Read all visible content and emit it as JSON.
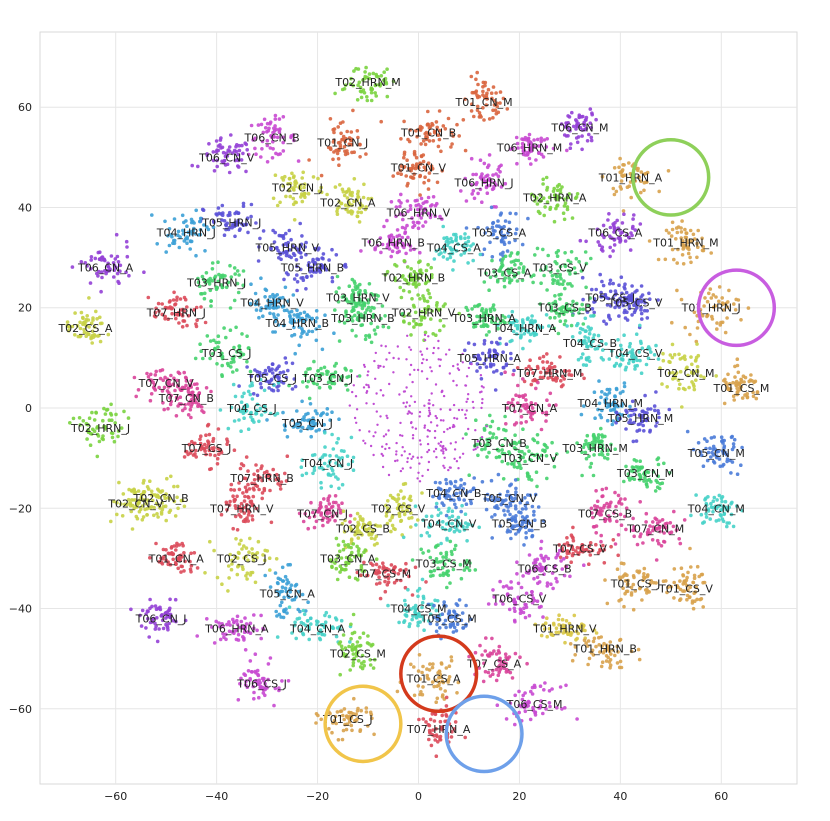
{
  "chart_data": {
    "type": "scatter",
    "title": "",
    "xlabel": "",
    "ylabel": "",
    "xlim": [
      -75,
      75
    ],
    "ylim": [
      -75,
      75
    ],
    "grid": true,
    "legend": "none",
    "x_ticks": [
      -60,
      -40,
      -20,
      0,
      20,
      40,
      60
    ],
    "y_ticks": [
      -60,
      -40,
      -20,
      0,
      20,
      40,
      60
    ],
    "clusters": [
      {
        "label": "T02_HRN_M",
        "x": -10,
        "y": 65,
        "color": "#7ad33f"
      },
      {
        "label": "T01_CN_M",
        "x": 13,
        "y": 61,
        "color": "#d9653e"
      },
      {
        "label": "T06_CN_M",
        "x": 32,
        "y": 56,
        "color": "#9440d6"
      },
      {
        "label": "T01_CN_B",
        "x": 2,
        "y": 55,
        "color": "#d9653e"
      },
      {
        "label": "T01_CN_J",
        "x": -15,
        "y": 53,
        "color": "#d9653e"
      },
      {
        "label": "T06_CN_B",
        "x": -29,
        "y": 54,
        "color": "#c849d1"
      },
      {
        "label": "T06_HRN_M",
        "x": 22,
        "y": 52,
        "color": "#c849d1"
      },
      {
        "label": "T06_CN_V",
        "x": -38,
        "y": 50,
        "color": "#9440d6"
      },
      {
        "label": "T01_CN_V",
        "x": 0,
        "y": 48,
        "color": "#d9653e"
      },
      {
        "label": "T01_HRN_A",
        "x": 42,
        "y": 46,
        "color": "#d8a24c"
      },
      {
        "label": "T06_HRN_J",
        "x": 13,
        "y": 45,
        "color": "#c849d1"
      },
      {
        "label": "T02_CN_J",
        "x": -24,
        "y": 44,
        "color": "#c8d146"
      },
      {
        "label": "T02_HRN_A",
        "x": 27,
        "y": 42,
        "color": "#7ad33f"
      },
      {
        "label": "T02_CN_A",
        "x": -14,
        "y": 41,
        "color": "#c8d146"
      },
      {
        "label": "T06_HRN_V",
        "x": 0,
        "y": 39,
        "color": "#c849d1"
      },
      {
        "label": "T05_HRN_J",
        "x": -37,
        "y": 37,
        "color": "#5a51d7"
      },
      {
        "label": "T04_HRN_J",
        "x": -46,
        "y": 35,
        "color": "#3ba0d6"
      },
      {
        "label": "T05_CS_A",
        "x": 16,
        "y": 35,
        "color": "#4a7bd8"
      },
      {
        "label": "T06_CS_A",
        "x": 39,
        "y": 35,
        "color": "#9440d6"
      },
      {
        "label": "T01_HRN_M",
        "x": 53,
        "y": 33,
        "color": "#d8a24c"
      },
      {
        "label": "T06_HRN_B",
        "x": -5,
        "y": 33,
        "color": "#c849d1"
      },
      {
        "label": "T04_CS_A",
        "x": 7,
        "y": 32,
        "color": "#46d1c8"
      },
      {
        "label": "T05_HRN_V",
        "x": -26,
        "y": 32,
        "color": "#5a51d7"
      },
      {
        "label": "T06_CN_A",
        "x": -62,
        "y": 28,
        "color": "#9440d6"
      },
      {
        "label": "T05_HRN_B",
        "x": -21,
        "y": 28,
        "color": "#5a51d7"
      },
      {
        "label": "T03_CS_V",
        "x": 28,
        "y": 28,
        "color": "#45d16d"
      },
      {
        "label": "T02_HRN_B",
        "x": -1,
        "y": 26,
        "color": "#7ad33f"
      },
      {
        "label": "T03_CS_A",
        "x": 17,
        "y": 27,
        "color": "#45d16d"
      },
      {
        "label": "T03_HRN_J",
        "x": -40,
        "y": 25,
        "color": "#45d16d"
      },
      {
        "label": "T05_CS_J",
        "x": 38,
        "y": 22,
        "color": "#5a51d7"
      },
      {
        "label": "T05_CS_V",
        "x": 43,
        "y": 21,
        "color": "#5a51d7"
      },
      {
        "label": "T03_HRN_V",
        "x": -12,
        "y": 22,
        "color": "#45d16d"
      },
      {
        "label": "T04_HRN_V",
        "x": -29,
        "y": 21,
        "color": "#3ba0d6"
      },
      {
        "label": "T03_CS_B",
        "x": 29,
        "y": 20,
        "color": "#45d16d"
      },
      {
        "label": "T07_HRN_J",
        "x": -48,
        "y": 19,
        "color": "#dc4a5a"
      },
      {
        "label": "T01_HRN_J",
        "x": 58,
        "y": 20,
        "color": "#d8a24c"
      },
      {
        "label": "T02_HRN_V",
        "x": 1,
        "y": 19,
        "color": "#7ad33f"
      },
      {
        "label": "T03_HRN_A",
        "x": 13,
        "y": 18,
        "color": "#45d16d"
      },
      {
        "label": "T03_HRN_B",
        "x": -11,
        "y": 18,
        "color": "#45d16d"
      },
      {
        "label": "T04_HRN_B",
        "x": -24,
        "y": 17,
        "color": "#3ba0d6"
      },
      {
        "label": "T04_HRN_A",
        "x": 21,
        "y": 16,
        "color": "#46d1c8"
      },
      {
        "label": "T02_CS_A",
        "x": -66,
        "y": 16,
        "color": "#c8d146"
      },
      {
        "label": "T04_CS_B",
        "x": 34,
        "y": 13,
        "color": "#46d1c8"
      },
      {
        "label": "T03_CS_J",
        "x": -38,
        "y": 11,
        "color": "#45d16d"
      },
      {
        "label": "T04_CS_V",
        "x": 43,
        "y": 11,
        "color": "#46d1c8"
      },
      {
        "label": "T05_HRN_A",
        "x": 14,
        "y": 10,
        "color": "#5a51d7"
      },
      {
        "label": "T02_CN_M",
        "x": 53,
        "y": 7,
        "color": "#c8d146"
      },
      {
        "label": "T07_HRN_M",
        "x": 26,
        "y": 7,
        "color": "#dc4a5a"
      },
      {
        "label": "T05_CS_J",
        "x": -29,
        "y": 6,
        "color": "#5a51d7"
      },
      {
        "label": "T03_CN_J",
        "x": -18,
        "y": 6,
        "color": "#45d16d"
      },
      {
        "label": "T07_CN_V",
        "x": -50,
        "y": 5,
        "color": "#d9449a"
      },
      {
        "label": "T01_CS_M",
        "x": 64,
        "y": 4,
        "color": "#d8a24c"
      },
      {
        "label": "T07_CN_B",
        "x": -46,
        "y": 2,
        "color": "#d9449a"
      },
      {
        "label": "T04_HRN_M",
        "x": 38,
        "y": 1,
        "color": "#3ba0d6"
      },
      {
        "label": "T07_CN_A",
        "x": 22,
        "y": 0,
        "color": "#d9449a"
      },
      {
        "label": "T04_CS_J",
        "x": -33,
        "y": 0,
        "color": "#46d1c8"
      },
      {
        "label": "T05_HRN_M",
        "x": 44,
        "y": -2,
        "color": "#5a51d7"
      },
      {
        "label": "T02_HRN_J",
        "x": -63,
        "y": -4,
        "color": "#7ad33f"
      },
      {
        "label": "T05_CN_J",
        "x": -22,
        "y": -3,
        "color": "#3ba0d6"
      },
      {
        "label": "T03_CN_B",
        "x": 16,
        "y": -7,
        "color": "#45d16d"
      },
      {
        "label": "T03_HRN_M",
        "x": 35,
        "y": -8,
        "color": "#45d16d"
      },
      {
        "label": "T07_CS_J",
        "x": -42,
        "y": -8,
        "color": "#dc4a5a"
      },
      {
        "label": "T05_CN_M",
        "x": 59,
        "y": -9,
        "color": "#4a7bd8"
      },
      {
        "label": "T03_CN_V",
        "x": 22,
        "y": -10,
        "color": "#45d16d"
      },
      {
        "label": "T04_CN_J",
        "x": -18,
        "y": -11,
        "color": "#46d1c8"
      },
      {
        "label": "T03_CN_M",
        "x": 45,
        "y": -13,
        "color": "#45d16d"
      },
      {
        "label": "T07_HRN_B",
        "x": -31,
        "y": -14,
        "color": "#dc4a5a"
      },
      {
        "label": "T04_CN_B",
        "x": 7,
        "y": -17,
        "color": "#4a7bd8"
      },
      {
        "label": "T02_CN_B",
        "x": -51,
        "y": -18,
        "color": "#c8d146"
      },
      {
        "label": "T05_CN_V",
        "x": 18,
        "y": -18,
        "color": "#4a7bd8"
      },
      {
        "label": "T02_CN_V",
        "x": -56,
        "y": -19,
        "color": "#c8d146"
      },
      {
        "label": "T04_CN_M",
        "x": 59,
        "y": -20,
        "color": "#46d1c8"
      },
      {
        "label": "T07_HRN_V",
        "x": -35,
        "y": -20,
        "color": "#dc4a5a"
      },
      {
        "label": "T02_CS_V",
        "x": -4,
        "y": -20,
        "color": "#c8d146"
      },
      {
        "label": "T07_CN_J",
        "x": -19,
        "y": -21,
        "color": "#d9449a"
      },
      {
        "label": "T07_CS_B",
        "x": 37,
        "y": -21,
        "color": "#d9449a"
      },
      {
        "label": "T04_CN_V",
        "x": 6,
        "y": -23,
        "color": "#46d1c8"
      },
      {
        "label": "T05_CN_B",
        "x": 20,
        "y": -23,
        "color": "#4a7bd8"
      },
      {
        "label": "T02_CS_B",
        "x": -11,
        "y": -24,
        "color": "#c8d146"
      },
      {
        "label": "T07_CN_M",
        "x": 47,
        "y": -24,
        "color": "#d9449a"
      },
      {
        "label": "T07_CS_V",
        "x": 32,
        "y": -28,
        "color": "#dc4a5a"
      },
      {
        "label": "T01_CN_A",
        "x": -48,
        "y": -30,
        "color": "#dc4a5a"
      },
      {
        "label": "T02_CS_J",
        "x": -35,
        "y": -30,
        "color": "#c8d146"
      },
      {
        "label": "T03_CN_A",
        "x": -14,
        "y": -30,
        "color": "#7ad33f"
      },
      {
        "label": "T03_CS_M",
        "x": 5,
        "y": -31,
        "color": "#45d16d"
      },
      {
        "label": "T06_CS_B",
        "x": 25,
        "y": -32,
        "color": "#c849d1"
      },
      {
        "label": "T07_CS_M",
        "x": -7,
        "y": -33,
        "color": "#dc4a5a"
      },
      {
        "label": "T01_CS_J",
        "x": 43,
        "y": -35,
        "color": "#d8a24c"
      },
      {
        "label": "T01_CS_V",
        "x": 53,
        "y": -36,
        "color": "#d8a24c"
      },
      {
        "label": "T05_CN_A",
        "x": -26,
        "y": -37,
        "color": "#3ba0d6"
      },
      {
        "label": "T06_CS_V",
        "x": 20,
        "y": -38,
        "color": "#c849d1"
      },
      {
        "label": "T04_CS_M",
        "x": 0,
        "y": -40,
        "color": "#46d1c8"
      },
      {
        "label": "T05_CS_M",
        "x": 6,
        "y": -42,
        "color": "#4a7bd8"
      },
      {
        "label": "T06_CN_J",
        "x": -51,
        "y": -42,
        "color": "#9440d6"
      },
      {
        "label": "T01_HRN_V",
        "x": 29,
        "y": -44,
        "color": "#d8c746"
      },
      {
        "label": "T06_HRN_A",
        "x": -36,
        "y": -44,
        "color": "#c849d1"
      },
      {
        "label": "T04_CN_A",
        "x": -20,
        "y": -44,
        "color": "#46d1c8"
      },
      {
        "label": "T01_HRN_B",
        "x": 37,
        "y": -48,
        "color": "#d8a24c"
      },
      {
        "label": "T02_CS_M",
        "x": -12,
        "y": -49,
        "color": "#7ad33f"
      },
      {
        "label": "T07_CS_A",
        "x": 15,
        "y": -51,
        "color": "#d9449a"
      },
      {
        "label": "T01_CS_A",
        "x": 3,
        "y": -54,
        "color": "#d8a24c"
      },
      {
        "label": "T06_CS_J",
        "x": -31,
        "y": -55,
        "color": "#c849d1"
      },
      {
        "label": "T06_CS_M",
        "x": 23,
        "y": -59,
        "color": "#c849d1"
      },
      {
        "label": "T01_CS_J",
        "x": -14,
        "y": -62,
        "color": "#d8a24c"
      },
      {
        "label": "T07_HRN_A",
        "x": 4,
        "y": -64,
        "color": "#dc4a5a"
      }
    ],
    "highlight_circles": [
      {
        "x": 50,
        "y": 46,
        "r": 7.5,
        "color": "#8ed05a"
      },
      {
        "x": 63,
        "y": 20,
        "r": 7.5,
        "color": "#c85de0"
      },
      {
        "x": 4,
        "y": -53,
        "r": 7.5,
        "color": "#d43a1c"
      },
      {
        "x": -11,
        "y": -63,
        "r": 7.5,
        "color": "#f1c54a"
      },
      {
        "x": 13,
        "y": -65,
        "r": 7.5,
        "color": "#6ea0ea"
      }
    ],
    "center_scatter": {
      "x": 0,
      "y": 0,
      "radius": 14,
      "color": "#c04dd3"
    }
  }
}
